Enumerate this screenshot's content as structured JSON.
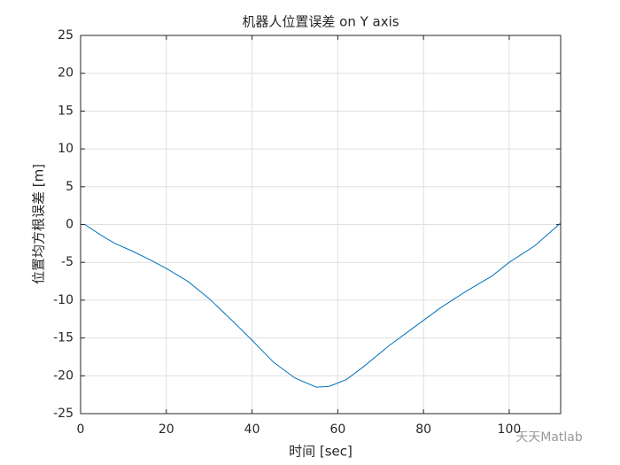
{
  "chart_data": {
    "type": "line",
    "title": "机器人位置误差 on Y axis",
    "x_label": "时间 [sec]",
    "y_label": "位置均方根误差 [m]",
    "x": [
      1,
      5,
      8,
      12,
      16,
      20,
      25,
      30,
      35,
      40,
      45,
      50,
      55,
      58,
      62,
      66,
      72,
      78,
      84,
      90,
      96,
      100,
      106,
      112
    ],
    "values": [
      0,
      -1.5,
      -2.5,
      -3.5,
      -4.6,
      -5.8,
      -7.5,
      -9.8,
      -12.5,
      -15.3,
      -18.2,
      -20.3,
      -21.5,
      -21.4,
      -20.5,
      -18.8,
      -16,
      -13.5,
      -11,
      -8.8,
      -6.8,
      -5,
      -2.8,
      0.2
    ],
    "color": "#0072bd",
    "xlim": [
      0,
      112
    ],
    "xticks": [
      0,
      20,
      40,
      60,
      80,
      100
    ],
    "ylim": [
      -25,
      25
    ],
    "yticks": [
      -25,
      -20,
      -15,
      -10,
      -5,
      0,
      5,
      10,
      15,
      20,
      25
    ],
    "grid": true,
    "watermark": "天天Matlab"
  }
}
